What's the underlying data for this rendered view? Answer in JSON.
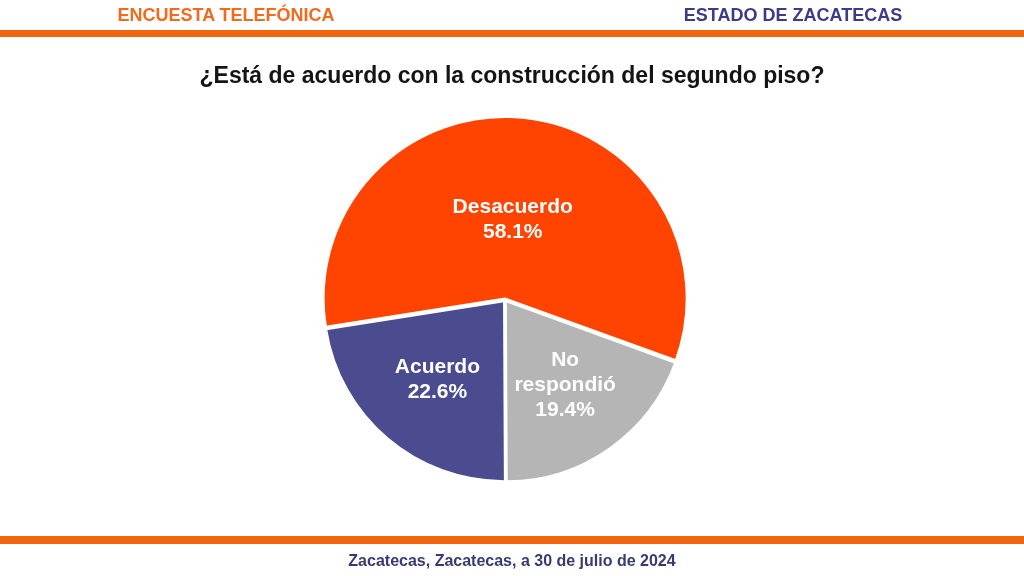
{
  "chart_data": {
    "type": "pie",
    "title": "¿Está de acuerdo con la construcción del segundo piso?",
    "categories": [
      "Desacuerdo",
      "No respondió",
      "Acuerdo"
    ],
    "values": [
      58.1,
      19.4,
      22.6
    ],
    "value_labels": [
      "58.1%",
      "19.4%",
      "22.6%"
    ],
    "colors": [
      "#fe4400",
      "#b5b5b5",
      "#4b4b8f"
    ],
    "annotations": [
      "ENCUESTA TELEFÓNICA",
      "ESTADO DE ZACATECAS",
      "Zacatecas, Zacatecas, a 30 de julio de 2024"
    ]
  }
}
